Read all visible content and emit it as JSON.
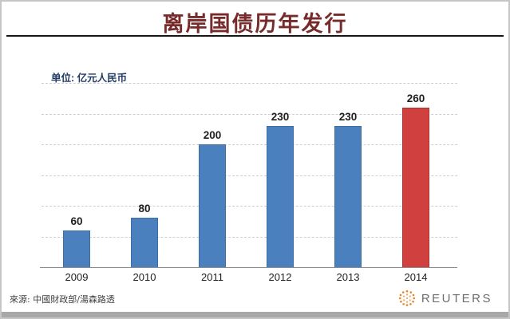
{
  "page": {
    "title": "离岸国债历年发行",
    "unit_label": "单位: 亿元人民币",
    "source_label": "來源: 中國財政部/湯森路透",
    "logo_text": "REUTERS"
  },
  "colors": {
    "title": "#772b2b",
    "bar_blue": "#4a80bd",
    "bar_blue_border": "#3c6da6",
    "bar_red": "#d0403e",
    "bar_red_border": "#a83434",
    "unit_text": "#1f3a63",
    "gridline": "#cfcfcf",
    "axis": "#8c8c8c",
    "data_label": "#1f1f1f",
    "source_text": "#3f3f3f",
    "reuters_orange": "#e8872b",
    "reuters_text": "#6e6e6e"
  },
  "chart_data": {
    "type": "bar",
    "title": "离岸国债历年发行",
    "unit": "亿元人民币",
    "categories": [
      "2009",
      "2010",
      "2011",
      "2012",
      "2013",
      "2014"
    ],
    "values": [
      60,
      80,
      200,
      230,
      230,
      260
    ],
    "bar_colors": [
      "blue",
      "blue",
      "blue",
      "blue",
      "blue",
      "red"
    ],
    "highlight_category": "2014",
    "ylim": [
      0,
      300
    ],
    "gridline_interval": 50,
    "grid": true,
    "legend": false,
    "data_labels": true,
    "xlabel": "",
    "ylabel": "单位: 亿元人民币"
  }
}
